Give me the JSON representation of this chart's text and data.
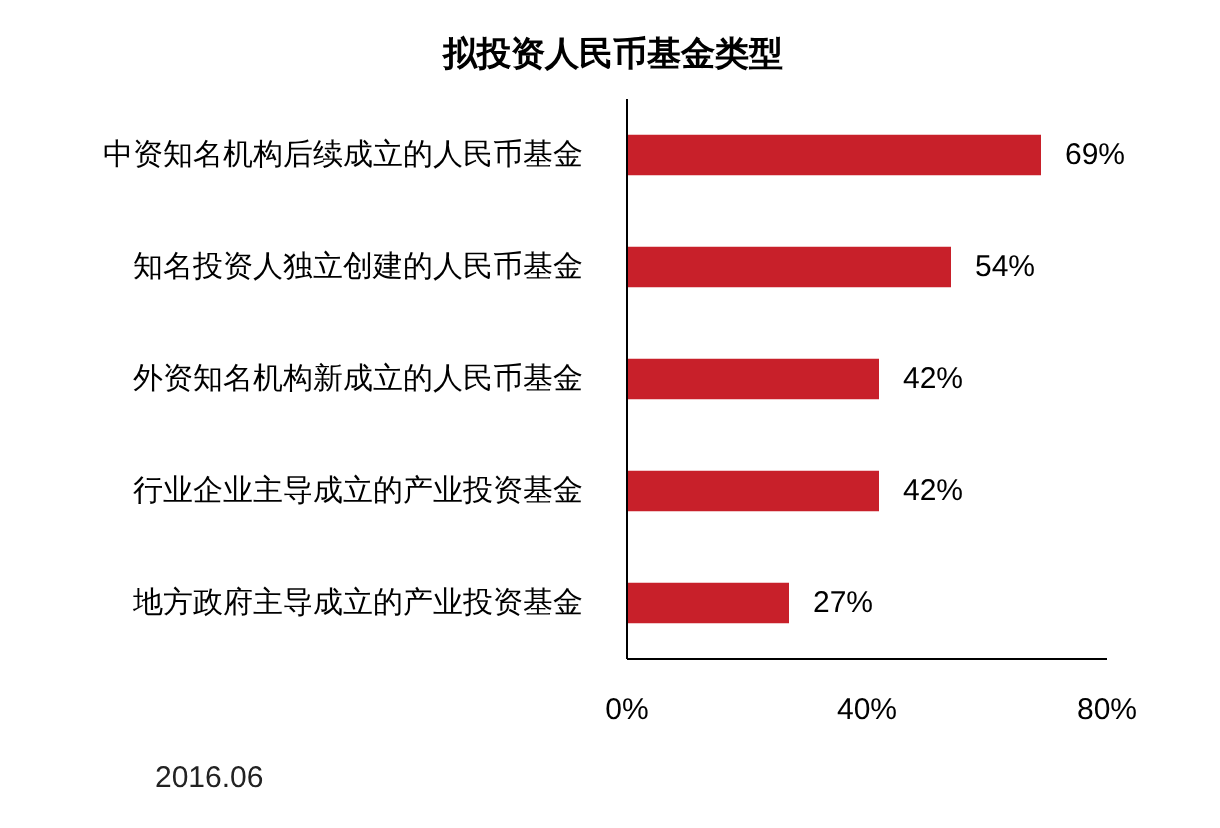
{
  "chart_data": {
    "type": "bar",
    "orientation": "horizontal",
    "title": "拟投资人民币基金类型",
    "categories": [
      "中资知名机构后续成立的人民币基金",
      "知名投资人独立创建的人民币基金",
      "外资知名机构新成立的人民币基金",
      "行业企业主导成立的产业投资基金",
      "地方政府主导成立的产业投资基金"
    ],
    "values": [
      69,
      54,
      42,
      42,
      27
    ],
    "color": "#c8202a",
    "value_labels": [
      "69%",
      "54%",
      "42%",
      "42%",
      "27%"
    ],
    "xlim": [
      0,
      80
    ],
    "xticks": [
      {
        "value": 0,
        "label": "0%"
      },
      {
        "value": 40,
        "label": "40%"
      },
      {
        "value": 80,
        "label": "80%"
      }
    ],
    "grid": false,
    "annotations": [
      "2016.06"
    ]
  }
}
